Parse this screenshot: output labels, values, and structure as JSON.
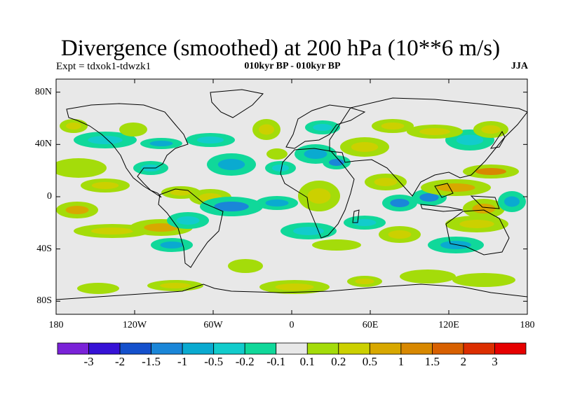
{
  "title": "Divergence (smoothed) at 200 hPa (10**6 m/s)",
  "experiment": "Expt = tdxok1-tdwzk1",
  "period": "010kyr BP - 010kyr BP",
  "season": "JJA",
  "lat_axis": {
    "labels": [
      "80N",
      "40N",
      "0",
      "40S",
      "80S"
    ],
    "values": [
      80,
      40,
      0,
      -40,
      -80
    ],
    "range": [
      -90,
      90
    ]
  },
  "lon_axis": {
    "labels": [
      "180",
      "120W",
      "60W",
      "0",
      "60E",
      "120E",
      "180"
    ],
    "values": [
      -180,
      -120,
      -60,
      0,
      60,
      120,
      180
    ],
    "range": [
      -180,
      180
    ]
  },
  "colorbar": {
    "labels": [
      "-3",
      "-2",
      "-1.5",
      "-1",
      "-0.5",
      "-0.2",
      "-0.1",
      "0.1",
      "0.2",
      "0.5",
      "1",
      "1.5",
      "2",
      "3"
    ],
    "colors": [
      "#7a22d8",
      "#3612d6",
      "#1450cc",
      "#1a86d8",
      "#0aaad0",
      "#12cccc",
      "#10d89a",
      "#e8e8e8",
      "#a4dc0a",
      "#ccd000",
      "#d8a800",
      "#d88800",
      "#d86000",
      "#dc2e00",
      "#e60000"
    ]
  },
  "colors": {
    "background": "#e8e8e8",
    "coast": "#000000"
  }
}
